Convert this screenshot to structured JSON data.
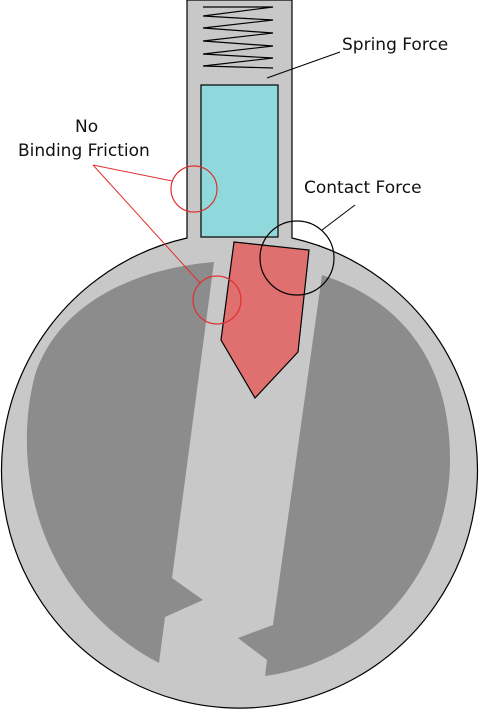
{
  "labels": {
    "spring_force": "Spring Force",
    "contact_force": "Contact Force",
    "no_binding_line1": "No",
    "no_binding_line2": "Binding Friction"
  },
  "colors": {
    "housing": "#c8c8c8",
    "housing_stroke": "#000000",
    "cavity": "#8c8c8c",
    "pin": "#8fd9dc",
    "cam": "#e07070",
    "friction_marker": "#e03030",
    "contact_marker": "#000000"
  }
}
